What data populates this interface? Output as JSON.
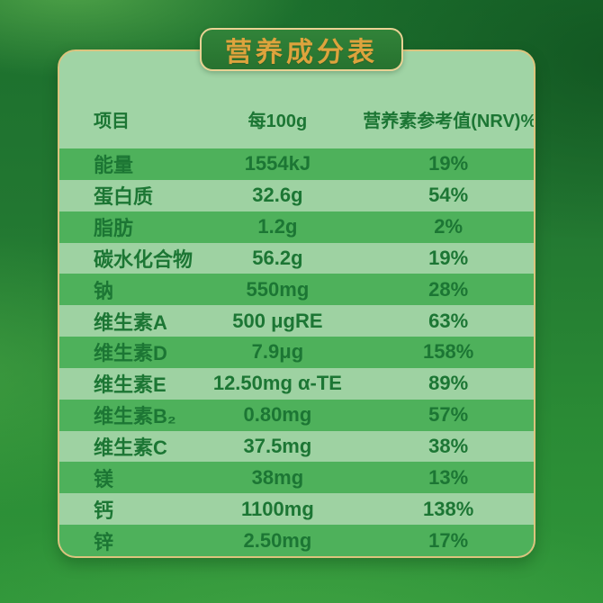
{
  "title": "营养成分表",
  "colors": {
    "background_green": "#2a8b35",
    "row_dark_green": "#4eb15b",
    "row_light_green": "#9ed2a2",
    "text_green": "#1c7634",
    "gold_border": "#dcc47e",
    "gold_title": "#dda33d"
  },
  "chart_data": {
    "type": "table",
    "title": "营养成分表",
    "columns": [
      "项目",
      "每100g",
      "营养素参考值(NRV)%"
    ],
    "rows": [
      {
        "item": "能量",
        "per100g": "1554kJ",
        "nrv": "19%"
      },
      {
        "item": "蛋白质",
        "per100g": "32.6g",
        "nrv": "54%"
      },
      {
        "item": "脂肪",
        "per100g": "1.2g",
        "nrv": "2%"
      },
      {
        "item": "碳水化合物",
        "per100g": "56.2g",
        "nrv": "19%"
      },
      {
        "item": "钠",
        "per100g": "550mg",
        "nrv": "28%"
      },
      {
        "item": "维生素A",
        "per100g": "500 μgRE",
        "nrv": "63%"
      },
      {
        "item": "维生素D",
        "per100g": "7.9μg",
        "nrv": "158%"
      },
      {
        "item": "维生素E",
        "per100g": "12.50mg α-TE",
        "nrv": "89%"
      },
      {
        "item": "维生素B₂",
        "per100g": "0.80mg",
        "nrv": "57%"
      },
      {
        "item": "维生素C",
        "per100g": "37.5mg",
        "nrv": "38%"
      },
      {
        "item": "镁",
        "per100g": "38mg",
        "nrv": "13%"
      },
      {
        "item": "钙",
        "per100g": "1100mg",
        "nrv": "138%"
      },
      {
        "item": "锌",
        "per100g": "2.50mg",
        "nrv": "17%"
      }
    ]
  }
}
